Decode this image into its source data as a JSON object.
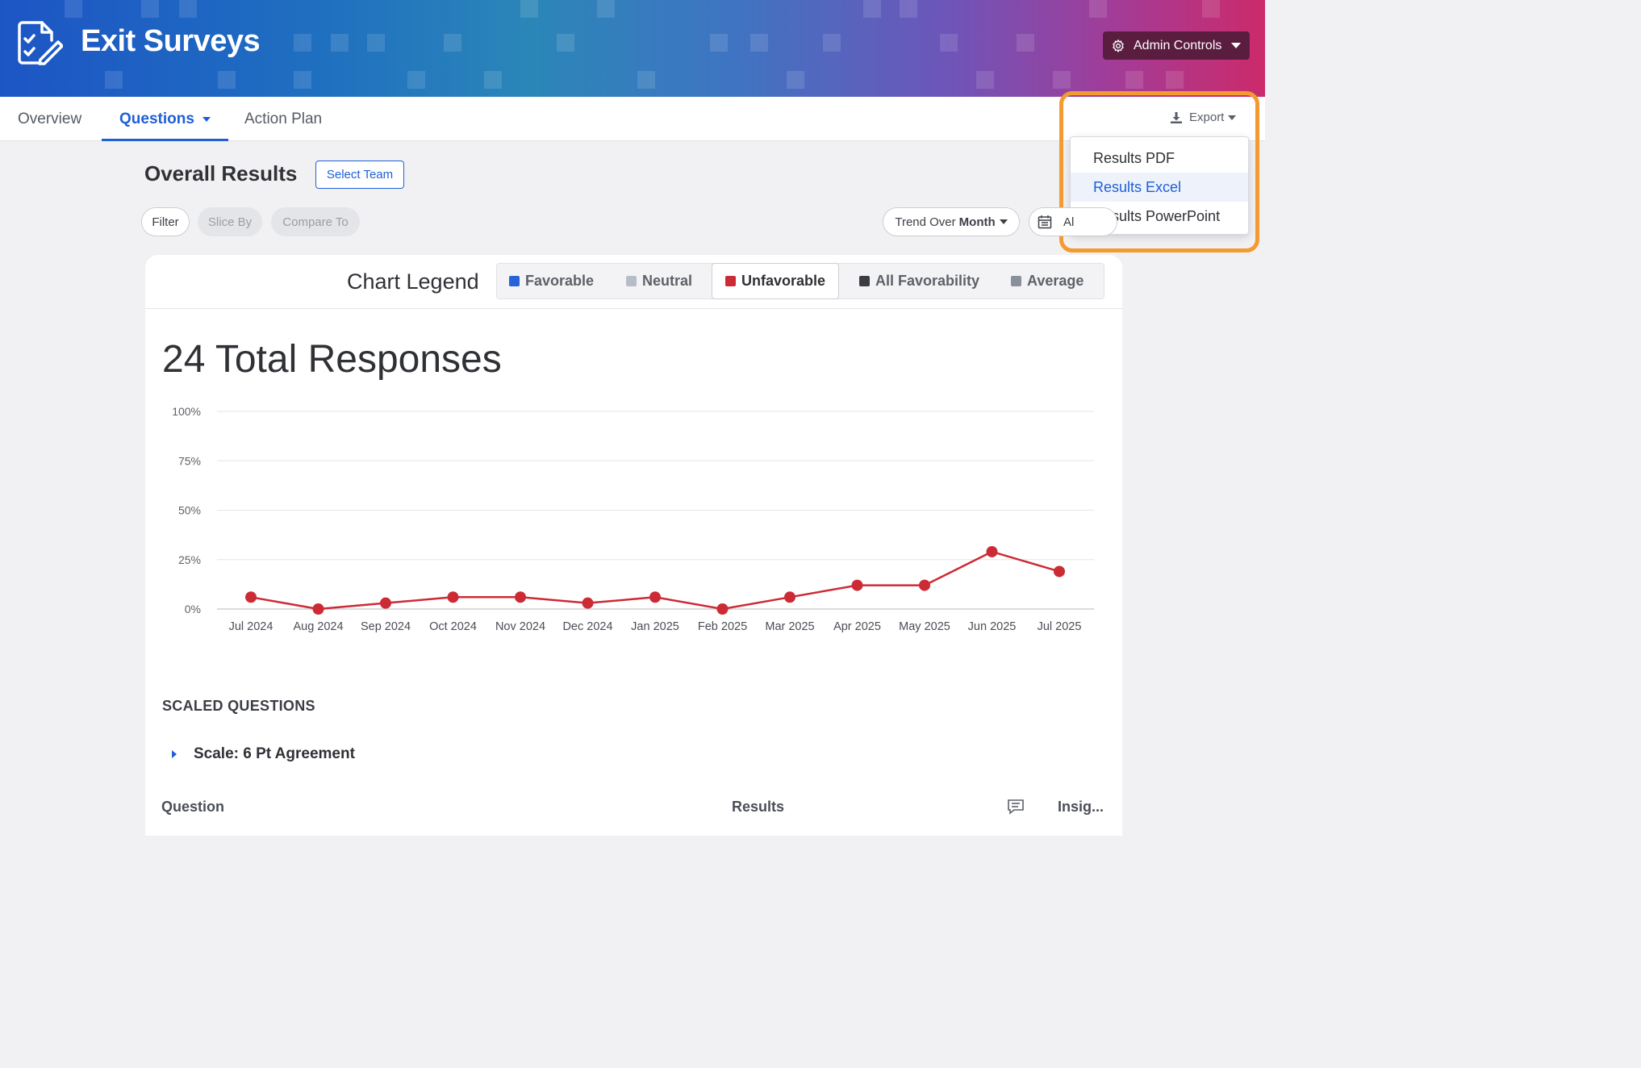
{
  "header": {
    "title": "Exit Surveys",
    "admin_label": "Admin Controls"
  },
  "tabs": [
    {
      "label": "Overview"
    },
    {
      "label": "Questions"
    },
    {
      "label": "Action Plan"
    }
  ],
  "export": {
    "label": "Export",
    "menu": [
      "Results PDF",
      "Results Excel",
      "Results PowerPoint"
    ],
    "highlighted": "Results Excel"
  },
  "results": {
    "title": "Overall Results",
    "select_team": "Select Team",
    "filter": "Filter",
    "slice_by": "Slice By",
    "compare_to": "Compare To",
    "trend_prefix": "Trend Over",
    "trend_value": "Month",
    "date_label": "Al"
  },
  "legend": {
    "title": "Chart Legend",
    "items": [
      {
        "label": "Favorable",
        "color": "#2563d6"
      },
      {
        "label": "Neutral",
        "color": "#b8bcc6"
      },
      {
        "label": "Unfavorable",
        "color": "#cc2b35"
      },
      {
        "label": "All Favorability",
        "color": "#3b3d42"
      },
      {
        "label": "Average",
        "color": "#8a8f99"
      }
    ]
  },
  "total_responses": "24 Total Responses",
  "chart_data": {
    "type": "line",
    "x": [
      "Jul 2024",
      "Aug 2024",
      "Sep 2024",
      "Oct 2024",
      "Nov 2024",
      "Dec 2024",
      "Jan 2025",
      "Feb 2025",
      "Mar 2025",
      "Apr 2025",
      "May 2025",
      "Jun 2025",
      "Jul 2025"
    ],
    "series": [
      {
        "name": "Unfavorable",
        "color": "#cc2b35",
        "values": [
          6,
          0,
          3,
          6,
          6,
          3,
          6,
          0,
          6,
          12,
          12,
          29,
          19
        ]
      }
    ],
    "yticks": [
      "100%",
      "75%",
      "50%",
      "25%",
      "0%"
    ],
    "ylim": [
      0,
      100
    ],
    "grid": true
  },
  "questions": {
    "section_label": "SCALED QUESTIONS",
    "scale_label": "Scale: 6 Pt Agreement",
    "col_question": "Question",
    "col_results": "Results",
    "col_insights": "Insig..."
  }
}
